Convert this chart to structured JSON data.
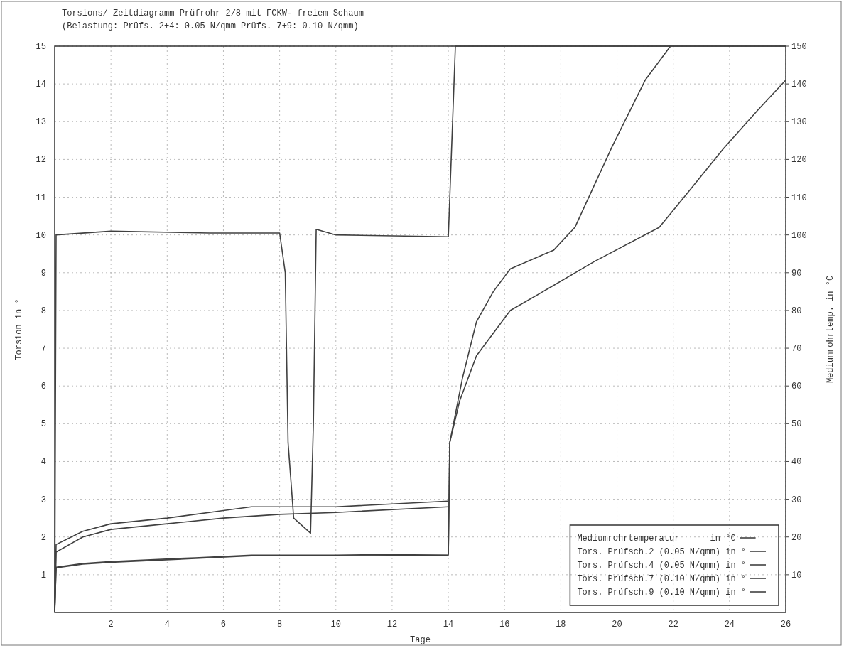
{
  "chart_data": {
    "type": "line",
    "title": "Torsions/ Zeitdiagramm  Prüfrohr 2/8 mit FCKW- freiem Schaum",
    "subtitle": "(Belastung: Prüfs. 2+4: 0.05 N/qmm  Prüfs. 7+9: 0.10 N/qmm)",
    "xlabel": "Tage",
    "ylabel": "Torsion in °",
    "y2label": "Mediumrohrtemp. in °C",
    "xlim": [
      0,
      26
    ],
    "xticks": [
      2,
      4,
      6,
      8,
      10,
      12,
      14,
      16,
      18,
      20,
      22,
      24,
      26
    ],
    "ylim": [
      0,
      15
    ],
    "yticks": [
      1,
      2,
      3,
      4,
      5,
      6,
      7,
      8,
      9,
      10,
      11,
      12,
      13,
      14,
      15
    ],
    "y2lim": [
      0,
      150
    ],
    "y2ticks": [
      10,
      20,
      30,
      40,
      50,
      60,
      70,
      80,
      90,
      100,
      110,
      120,
      130,
      140,
      150
    ],
    "grid": true,
    "legend": "bottom right",
    "line_style": "solid",
    "series": [
      {
        "name": "Mediumrohrtemperatur      in °C",
        "color": "#404040",
        "axis": "y2",
        "x": [
          0,
          0.05,
          2,
          5.5,
          8,
          8.2,
          8.3,
          8.5,
          9.1,
          9.2,
          9.3,
          10,
          14,
          14.25,
          26
        ],
        "values": [
          0,
          100,
          101,
          100.5,
          100.5,
          90,
          45,
          25,
          21,
          50,
          101.5,
          100,
          99.5,
          150,
          150
        ]
      },
      {
        "name": "Tors. Prüfsch.2 (0.05 N/qmm) in °",
        "color": "#404040",
        "x": [
          0,
          0.05,
          1,
          2,
          5,
          7,
          10,
          14,
          14.05,
          14.5,
          15,
          15.6,
          16.2,
          17.75,
          18.5,
          19.8,
          21,
          21.9
        ],
        "values": [
          0,
          1.2,
          1.3,
          1.35,
          1.45,
          1.52,
          1.52,
          1.55,
          4.5,
          6.2,
          7.7,
          8.5,
          9.1,
          9.6,
          10.2,
          12.3,
          14.1,
          15
        ]
      },
      {
        "name": "Tors. Prüfsch.4 (0.05 N/qmm) in °",
        "color": "#404040",
        "x": [
          0,
          0.05,
          1,
          2,
          5,
          7,
          10,
          14,
          14.05,
          14.4,
          15,
          16.2,
          17.6,
          19.2,
          21.5,
          22.6,
          23.8,
          25,
          26
        ],
        "values": [
          0,
          1.18,
          1.28,
          1.33,
          1.43,
          1.5,
          1.5,
          1.52,
          4.5,
          5.6,
          6.8,
          8,
          8.6,
          9.3,
          10.2,
          11.2,
          12.3,
          13.3,
          14.1
        ]
      },
      {
        "name": "Tors. Prüfsch.7 (0.10 N/qmm) in °",
        "color": "#404040",
        "x": [
          0,
          0.05,
          1,
          2,
          4,
          6,
          7,
          10,
          14
        ],
        "values": [
          0,
          1.8,
          2.15,
          2.35,
          2.5,
          2.7,
          2.8,
          2.8,
          2.95
        ]
      },
      {
        "name": "Tors. Prüfsch.9 (0.10 N/qmm) in °",
        "color": "#404040",
        "x": [
          0,
          0.05,
          1,
          2,
          4,
          6,
          8,
          10,
          14
        ],
        "values": [
          0,
          1.6,
          2.0,
          2.2,
          2.35,
          2.5,
          2.6,
          2.65,
          2.8
        ]
      }
    ]
  }
}
